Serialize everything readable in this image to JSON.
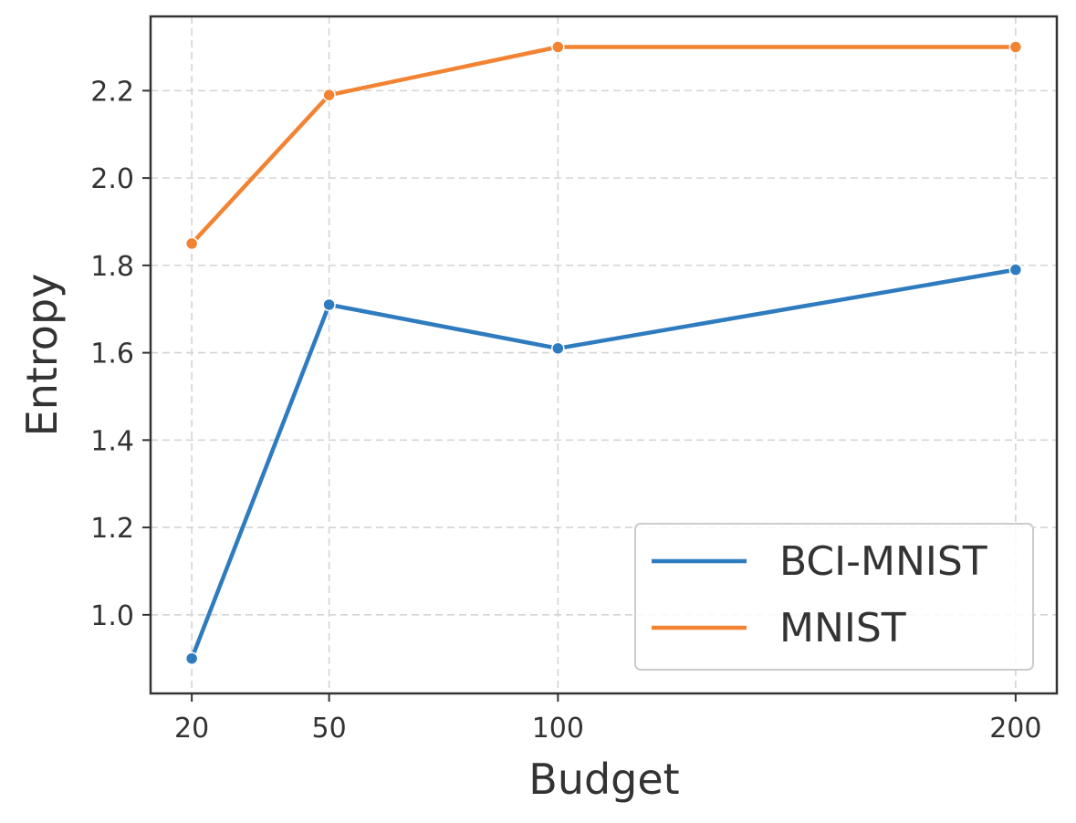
{
  "chart_data": {
    "type": "line",
    "x": [
      20,
      50,
      100,
      200
    ],
    "xlabel": "Budget",
    "ylabel": "Entropy",
    "xlim": [
      11,
      209
    ],
    "ylim": [
      0.82,
      2.37
    ],
    "x_ticks": [
      "20",
      "50",
      "100",
      "200"
    ],
    "y_ticks": [
      "1.0",
      "1.2",
      "1.4",
      "1.6",
      "1.8",
      "2.0",
      "2.2"
    ],
    "grid": true,
    "legend_position": "lower-right",
    "series": [
      {
        "name": "BCI-MNIST",
        "color": "#2e7bbf",
        "values": [
          0.9,
          1.71,
          1.61,
          1.79
        ]
      },
      {
        "name": "MNIST",
        "color": "#f28332",
        "values": [
          1.85,
          2.19,
          2.3,
          2.3
        ]
      }
    ]
  }
}
